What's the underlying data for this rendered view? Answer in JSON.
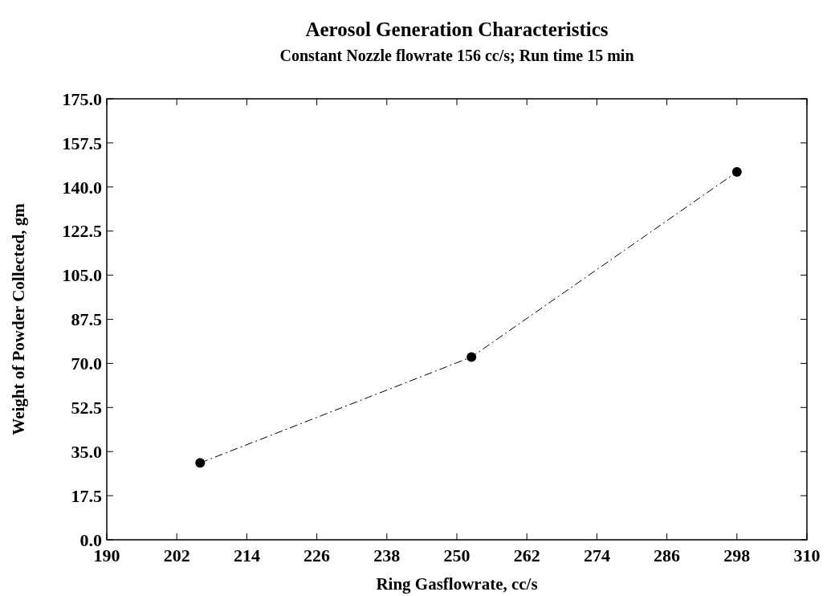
{
  "chart_data": {
    "type": "line",
    "title": "Aerosol Generation Characteristics",
    "subtitle": "Constant Nozzle flowrate 156 cc/s; Run time 15 min",
    "xlabel": "Ring Gasflowrate, cc/s",
    "ylabel": "Weight of Powder Collected, gm",
    "x": [
      206,
      252.5,
      298
    ],
    "series": [
      {
        "color": "#000000",
        "values": [
          30.5,
          72.5,
          146
        ]
      }
    ],
    "xlim": [
      190,
      310
    ],
    "xticks": [
      190,
      202,
      214,
      226,
      238,
      250,
      262,
      274,
      286,
      298,
      310
    ],
    "ylim": [
      0,
      175
    ],
    "yticks": [
      {
        "value": 0,
        "label": "0.0"
      },
      17.5,
      {
        "value": 35,
        "label": "35.0"
      },
      52.5,
      {
        "value": 70,
        "label": "70.0"
      },
      87.5,
      {
        "value": 105,
        "label": "105.0"
      },
      122.5,
      {
        "value": 140,
        "label": "140.0"
      },
      157.5,
      {
        "value": 175,
        "label": "175.0"
      }
    ],
    "marker": "circle",
    "line_style": "dashed",
    "grid": false
  }
}
